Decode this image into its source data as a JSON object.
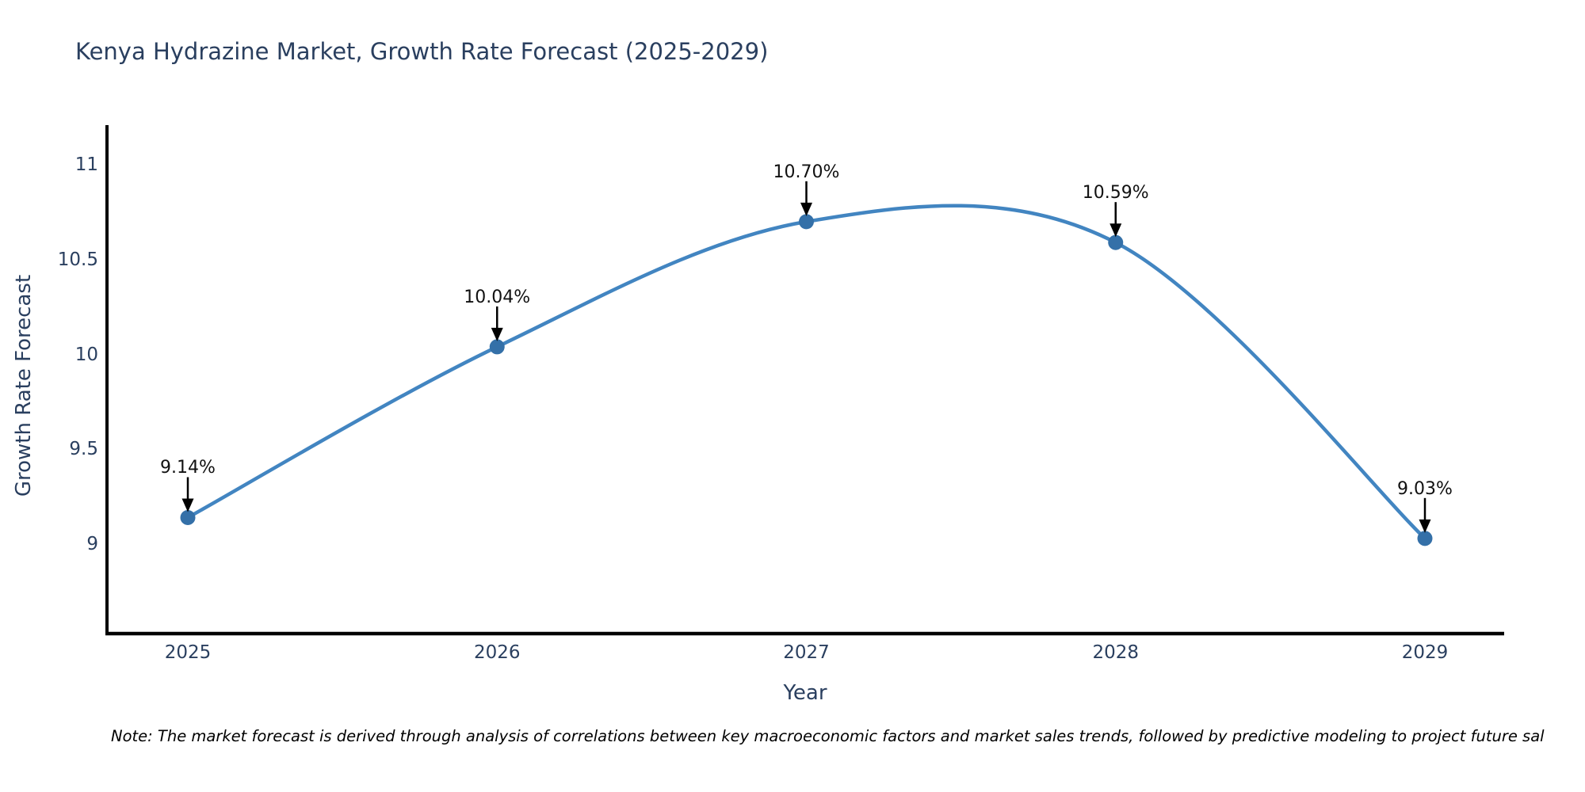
{
  "chart_data": {
    "type": "line",
    "title": "Kenya Hydrazine Market, Growth Rate Forecast (2025-2029)",
    "x": [
      2025,
      2026,
      2027,
      2028,
      2029
    ],
    "series": [
      {
        "name": "Growth Rate Forecast",
        "values": [
          9.14,
          10.04,
          10.7,
          10.59,
          9.03
        ]
      }
    ],
    "point_labels": [
      "9.14%",
      "10.04%",
      "10.70%",
      "10.59%",
      "9.03%"
    ],
    "xlabel": "Year",
    "ylabel": "Growth Rate Forecast",
    "x_tick_labels": [
      "2025",
      "2026",
      "2027",
      "2028",
      "2029"
    ],
    "y_tick_labels": [
      "11",
      "10.5",
      "10",
      "9.5",
      "9"
    ],
    "y_tick_values": [
      11,
      10.5,
      10,
      9.5,
      9
    ],
    "ylim": [
      8.53,
      11.21
    ],
    "xlim": [
      2024.74,
      2029.26
    ],
    "line_shape": "spline",
    "grid": false,
    "legend": "none",
    "colors": {
      "line": "#4285c1",
      "marker": "#3470a8",
      "axis": "#000000",
      "tick_text": "#2a3f5f",
      "annotation_text": "#111111"
    }
  },
  "note": "Note: The market forecast is derived through analysis of correlations between key macroeconomic factors and market sales trends, followed by predictive modeling to project future sal"
}
